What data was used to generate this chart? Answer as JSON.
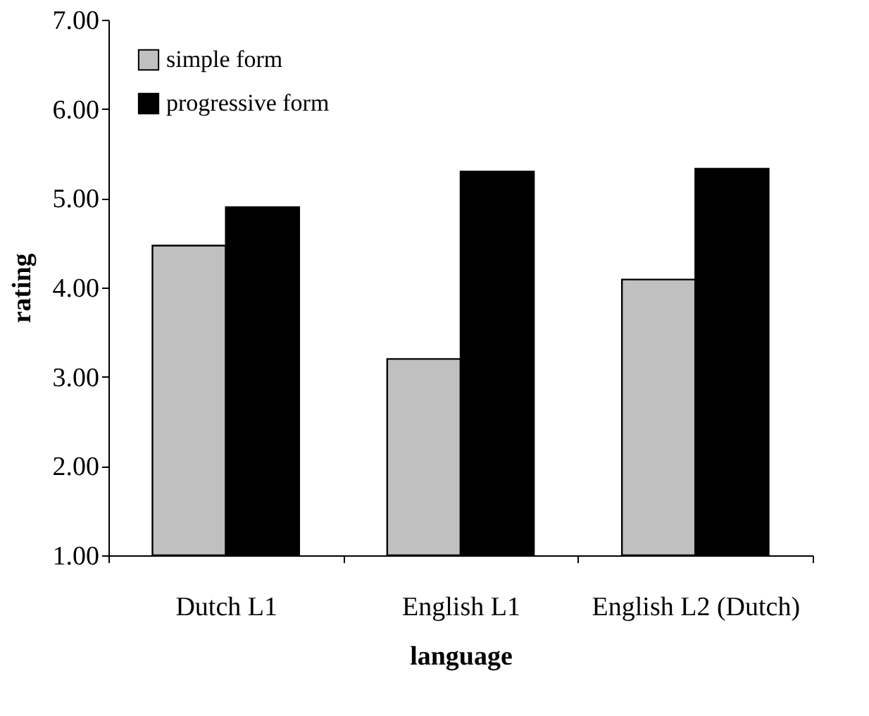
{
  "chart_data": {
    "type": "bar",
    "xlabel": "language",
    "ylabel": "rating",
    "categories": [
      "Dutch L1",
      "English L1",
      "English L2 (Dutch)"
    ],
    "series": [
      {
        "name": "simple form",
        "color": "#c0c0c0",
        "values": [
          4.47,
          3.2,
          4.09
        ]
      },
      {
        "name": "progressive form",
        "color": "#000000",
        "values": [
          4.9,
          5.3,
          5.33
        ]
      }
    ],
    "ylim": [
      1,
      7
    ],
    "yticks": [
      {
        "value": 1,
        "label": "1.00"
      },
      {
        "value": 2,
        "label": "2.00"
      },
      {
        "value": 3,
        "label": "3.00"
      },
      {
        "value": 4,
        "label": "4.00"
      },
      {
        "value": 5,
        "label": "5.00"
      },
      {
        "value": 6,
        "label": "6.00"
      },
      {
        "value": 7,
        "label": "7.00"
      }
    ],
    "grid": false,
    "legend": "top left"
  }
}
